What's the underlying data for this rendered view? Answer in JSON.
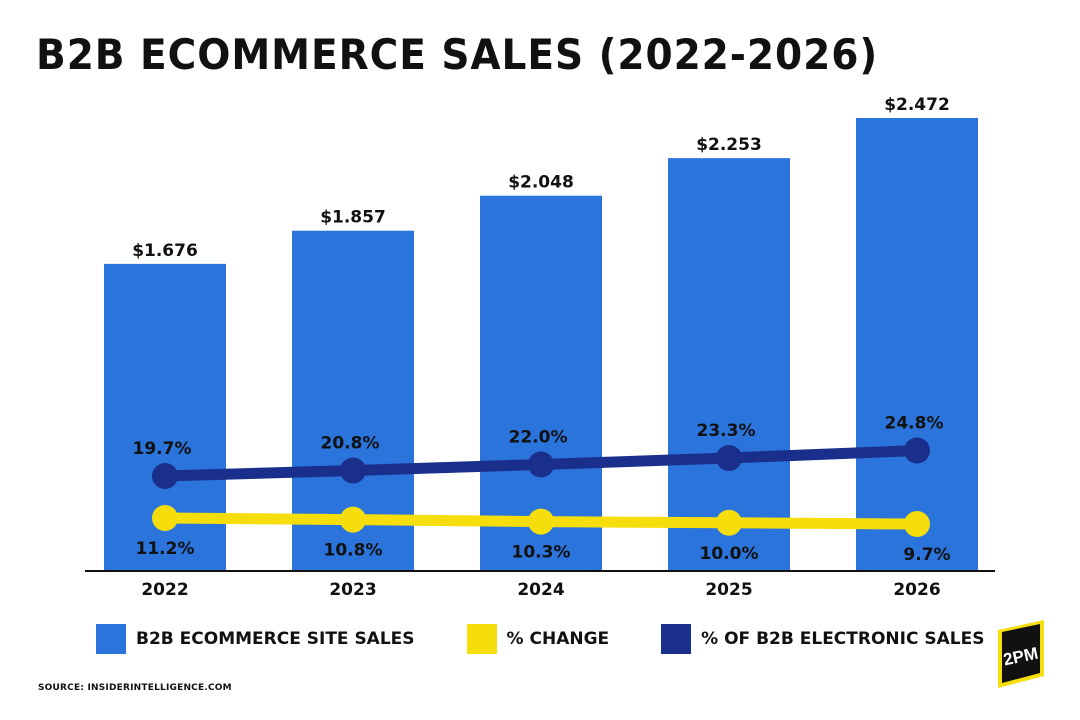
{
  "title": "B2B ECOMMERCE SALES (2022-2026)",
  "source": "SOURCE: INSIDERINTELLIGENCE.COM",
  "logo_text": "2PM",
  "colors": {
    "bar": "#2b74dc",
    "change": "#f5de0c",
    "share": "#1a2f8c"
  },
  "chart_data": {
    "type": "bar",
    "title": "B2B ECOMMERCE SALES (2022-2026)",
    "categories": [
      "2022",
      "2023",
      "2024",
      "2025",
      "2026"
    ],
    "series": [
      {
        "name": "B2B ECOMMERCE SITE SALES",
        "type": "bar",
        "values": [
          1.676,
          1.857,
          2.048,
          2.253,
          2.472
        ],
        "labels": [
          "$1.676",
          "$1.857",
          "$2.048",
          "$2.253",
          "$2.472"
        ]
      },
      {
        "name": "% CHANGE",
        "type": "line",
        "values": [
          11.2,
          10.8,
          10.3,
          10.0,
          9.7
        ],
        "labels": [
          "11.2%",
          "10.8%",
          "10.3%",
          "10.0%",
          "9.7%"
        ]
      },
      {
        "name": "% OF B2B ELECTRONIC SALES",
        "type": "line",
        "values": [
          19.7,
          20.8,
          22.0,
          23.3,
          24.8
        ],
        "labels": [
          "19.7%",
          "20.8%",
          "22.0%",
          "23.3%",
          "24.8%"
        ]
      }
    ],
    "legend_position": "bottom",
    "grid": false
  }
}
